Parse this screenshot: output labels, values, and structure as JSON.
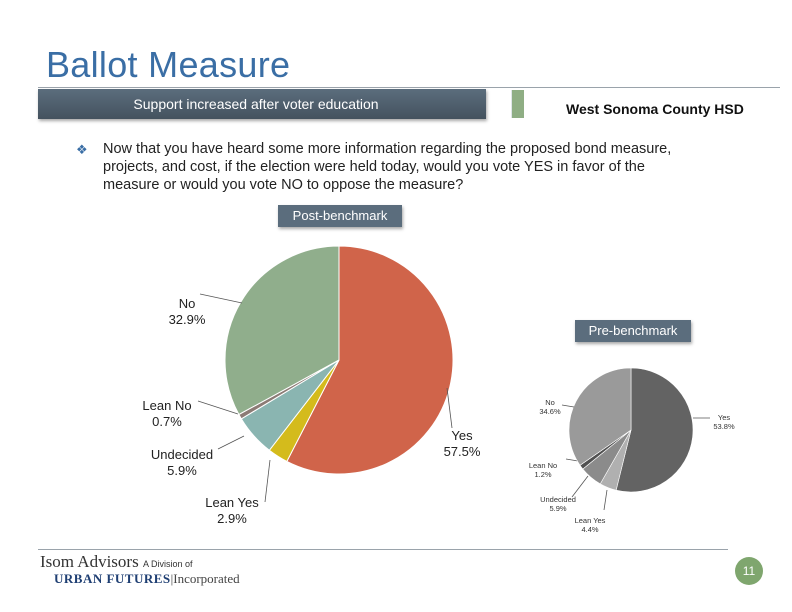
{
  "header": {
    "title": "Ballot Measure",
    "banner": "Support increased after voter education",
    "district": "West Sonoma County HSD"
  },
  "question": "Now that you have heard some more information regarding the proposed bond measure, projects, and cost, if the election were held today, would you vote YES in favor of the measure or would you vote NO to oppose the measure?",
  "footer": {
    "logo_line1_a": "Isom Advisors",
    "logo_line1_b": "A Division of",
    "logo_line2_a": "URBAN FUTURES",
    "logo_line2_b": "|Incorporated",
    "page_number": "11"
  },
  "chart_data": [
    {
      "type": "pie",
      "title": "Post-benchmark",
      "categories": [
        "Yes",
        "Lean Yes",
        "Undecided",
        "Lean No",
        "No"
      ],
      "values": [
        57.5,
        2.9,
        5.9,
        0.7,
        32.9
      ],
      "labels": [
        "57.5%",
        "2.9%",
        "5.9%",
        "0.7%",
        "32.9%"
      ],
      "colors": [
        "#d0644a",
        "#d4bb1c",
        "#8ab5b1",
        "#8c7b75",
        "#90ae8c"
      ]
    },
    {
      "type": "pie",
      "title": "Pre-benchmark",
      "categories": [
        "Yes",
        "Lean Yes",
        "Undecided",
        "Lean No",
        "No"
      ],
      "values": [
        53.8,
        4.4,
        5.9,
        1.2,
        34.6
      ],
      "labels": [
        "53.8%",
        "4.4%",
        "5.9%",
        "1.2%",
        "34.6%"
      ],
      "colors": [
        "#636363",
        "#b0b0b0",
        "#8b8b8b",
        "#505050",
        "#9a9a9a"
      ]
    }
  ]
}
